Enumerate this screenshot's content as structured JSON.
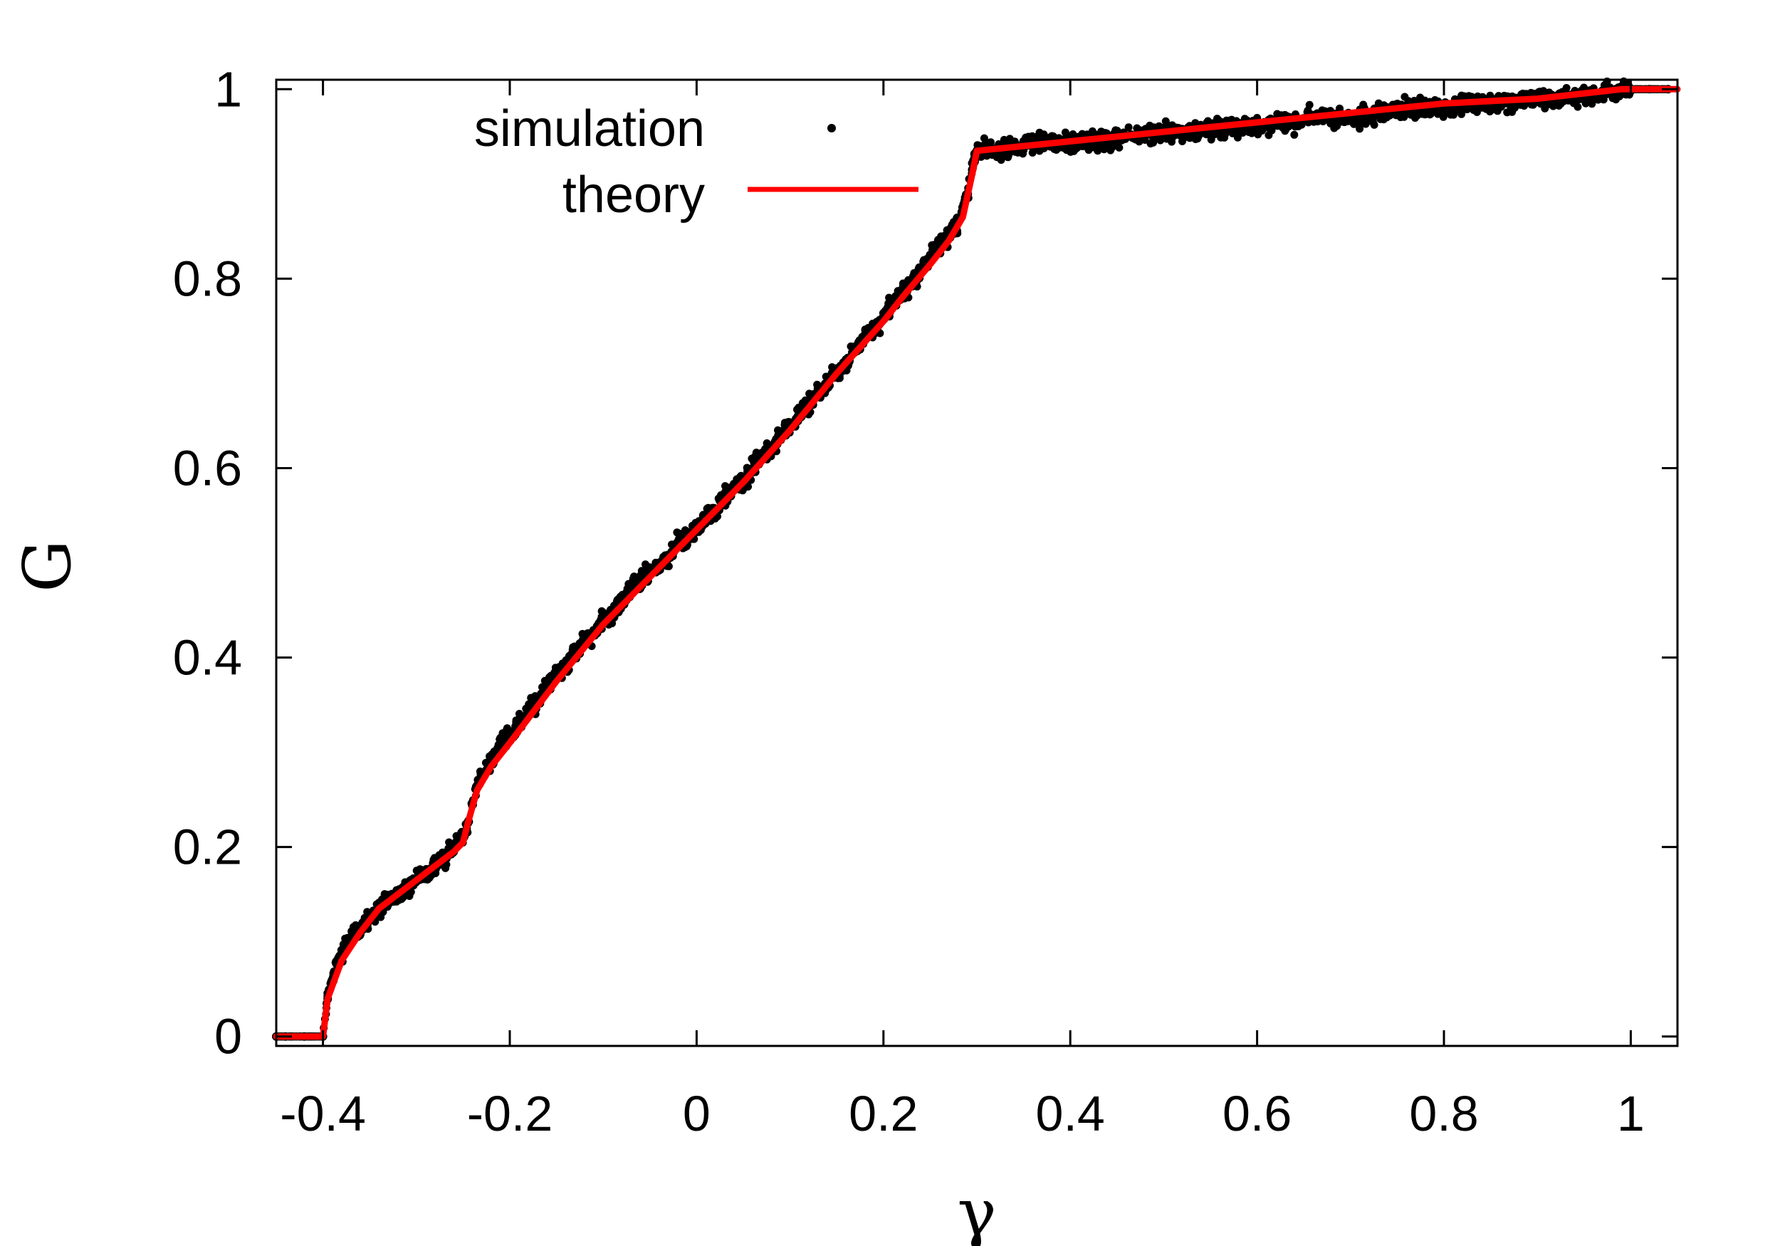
{
  "chart_data": {
    "type": "scatter",
    "xlabel": "γ",
    "ylabel": "G",
    "xlim": [
      -0.45,
      1.05
    ],
    "ylim": [
      -0.01,
      1.01
    ],
    "xticks": [
      -0.4,
      -0.2,
      0,
      0.2,
      0.4,
      0.6,
      0.8,
      1
    ],
    "xtick_labels": [
      "-0.4",
      "-0.2",
      "0",
      "0.2",
      "0.4",
      "0.6",
      "0.8",
      "1"
    ],
    "yticks": [
      0,
      0.2,
      0.4,
      0.6,
      0.8,
      1
    ],
    "ytick_labels": [
      "0",
      "0.2",
      "0.4",
      "0.6",
      "0.8",
      "1"
    ],
    "grid": false,
    "legend_position": "top-left",
    "series": [
      {
        "name": "simulation",
        "kind": "points",
        "color": "#000000",
        "points": [
          [
            -0.45,
            0.0
          ],
          [
            -0.44,
            0.0
          ],
          [
            -0.42,
            0.0
          ],
          [
            -0.4,
            0.0
          ],
          [
            -0.395,
            0.04
          ],
          [
            -0.39,
            0.06
          ],
          [
            -0.385,
            0.08
          ],
          [
            -0.38,
            0.085
          ],
          [
            -0.375,
            0.1
          ],
          [
            -0.37,
            0.105
          ],
          [
            -0.36,
            0.11
          ],
          [
            -0.355,
            0.125
          ],
          [
            -0.35,
            0.125
          ],
          [
            -0.34,
            0.135
          ],
          [
            -0.335,
            0.14
          ],
          [
            -0.33,
            0.145
          ],
          [
            -0.32,
            0.15
          ],
          [
            -0.31,
            0.155
          ],
          [
            -0.3,
            0.165
          ],
          [
            -0.295,
            0.17
          ],
          [
            -0.29,
            0.17
          ],
          [
            -0.28,
            0.18
          ],
          [
            -0.27,
            0.185
          ],
          [
            -0.265,
            0.195
          ],
          [
            -0.26,
            0.195
          ],
          [
            -0.255,
            0.21
          ],
          [
            -0.25,
            0.21
          ],
          [
            -0.245,
            0.225
          ],
          [
            -0.24,
            0.245
          ],
          [
            -0.235,
            0.265
          ],
          [
            -0.23,
            0.275
          ],
          [
            -0.225,
            0.28
          ],
          [
            -0.22,
            0.29
          ],
          [
            -0.215,
            0.3
          ],
          [
            -0.21,
            0.31
          ],
          [
            -0.2,
            0.315
          ],
          [
            -0.19,
            0.33
          ],
          [
            -0.18,
            0.345
          ],
          [
            -0.17,
            0.355
          ],
          [
            -0.16,
            0.37
          ],
          [
            -0.15,
            0.385
          ],
          [
            -0.14,
            0.39
          ],
          [
            -0.13,
            0.405
          ],
          [
            -0.12,
            0.42
          ],
          [
            -0.11,
            0.425
          ],
          [
            -0.1,
            0.44
          ],
          [
            -0.09,
            0.445
          ],
          [
            -0.08,
            0.46
          ],
          [
            -0.07,
            0.475
          ],
          [
            -0.06,
            0.48
          ],
          [
            -0.05,
            0.49
          ],
          [
            -0.04,
            0.5
          ],
          [
            -0.03,
            0.505
          ],
          [
            -0.02,
            0.52
          ],
          [
            -0.01,
            0.525
          ],
          [
            0.0,
            0.535
          ],
          [
            0.01,
            0.55
          ],
          [
            0.02,
            0.555
          ],
          [
            0.03,
            0.57
          ],
          [
            0.04,
            0.58
          ],
          [
            0.05,
            0.585
          ],
          [
            0.06,
            0.6
          ],
          [
            0.07,
            0.615
          ],
          [
            0.08,
            0.62
          ],
          [
            0.09,
            0.635
          ],
          [
            0.1,
            0.645
          ],
          [
            0.11,
            0.655
          ],
          [
            0.12,
            0.665
          ],
          [
            0.13,
            0.68
          ],
          [
            0.14,
            0.69
          ],
          [
            0.15,
            0.7
          ],
          [
            0.16,
            0.71
          ],
          [
            0.17,
            0.725
          ],
          [
            0.18,
            0.74
          ],
          [
            0.19,
            0.745
          ],
          [
            0.2,
            0.76
          ],
          [
            0.21,
            0.775
          ],
          [
            0.22,
            0.785
          ],
          [
            0.23,
            0.795
          ],
          [
            0.24,
            0.81
          ],
          [
            0.25,
            0.825
          ],
          [
            0.26,
            0.835
          ],
          [
            0.27,
            0.845
          ],
          [
            0.28,
            0.86
          ],
          [
            0.285,
            0.875
          ],
          [
            0.29,
            0.89
          ],
          [
            0.295,
            0.915
          ],
          [
            0.3,
            0.935
          ],
          [
            0.31,
            0.94
          ],
          [
            0.33,
            0.935
          ],
          [
            0.35,
            0.94
          ],
          [
            0.37,
            0.945
          ],
          [
            0.4,
            0.945
          ],
          [
            0.43,
            0.945
          ],
          [
            0.46,
            0.95
          ],
          [
            0.5,
            0.955
          ],
          [
            0.53,
            0.955
          ],
          [
            0.56,
            0.96
          ],
          [
            0.6,
            0.96
          ],
          [
            0.63,
            0.965
          ],
          [
            0.66,
            0.97
          ],
          [
            0.7,
            0.97
          ],
          [
            0.73,
            0.975
          ],
          [
            0.76,
            0.98
          ],
          [
            0.8,
            0.98
          ],
          [
            0.83,
            0.985
          ],
          [
            0.86,
            0.985
          ],
          [
            0.9,
            0.99
          ],
          [
            0.93,
            0.99
          ],
          [
            0.96,
            0.995
          ],
          [
            1.0,
            1.0
          ],
          [
            1.02,
            1.0
          ],
          [
            1.04,
            1.0
          ]
        ]
      },
      {
        "name": "theory",
        "kind": "line",
        "color": "#ff0000",
        "points": [
          [
            -0.45,
            0.0
          ],
          [
            -0.4,
            0.0
          ],
          [
            -0.395,
            0.04
          ],
          [
            -0.38,
            0.08
          ],
          [
            -0.36,
            0.11
          ],
          [
            -0.34,
            0.135
          ],
          [
            -0.32,
            0.15
          ],
          [
            -0.3,
            0.165
          ],
          [
            -0.28,
            0.18
          ],
          [
            -0.26,
            0.195
          ],
          [
            -0.25,
            0.205
          ],
          [
            -0.245,
            0.225
          ],
          [
            -0.235,
            0.26
          ],
          [
            -0.22,
            0.285
          ],
          [
            -0.2,
            0.31
          ],
          [
            -0.15,
            0.375
          ],
          [
            -0.1,
            0.435
          ],
          [
            -0.05,
            0.485
          ],
          [
            0.0,
            0.535
          ],
          [
            0.05,
            0.585
          ],
          [
            0.1,
            0.64
          ],
          [
            0.15,
            0.7
          ],
          [
            0.2,
            0.755
          ],
          [
            0.22,
            0.78
          ],
          [
            0.25,
            0.815
          ],
          [
            0.27,
            0.84
          ],
          [
            0.285,
            0.865
          ],
          [
            0.295,
            0.91
          ],
          [
            0.3,
            0.935
          ],
          [
            0.4,
            0.945
          ],
          [
            0.5,
            0.955
          ],
          [
            0.6,
            0.965
          ],
          [
            0.7,
            0.975
          ],
          [
            0.8,
            0.985
          ],
          [
            0.9,
            0.99
          ],
          [
            0.99,
            1.0
          ],
          [
            1.05,
            1.0
          ]
        ]
      }
    ]
  }
}
